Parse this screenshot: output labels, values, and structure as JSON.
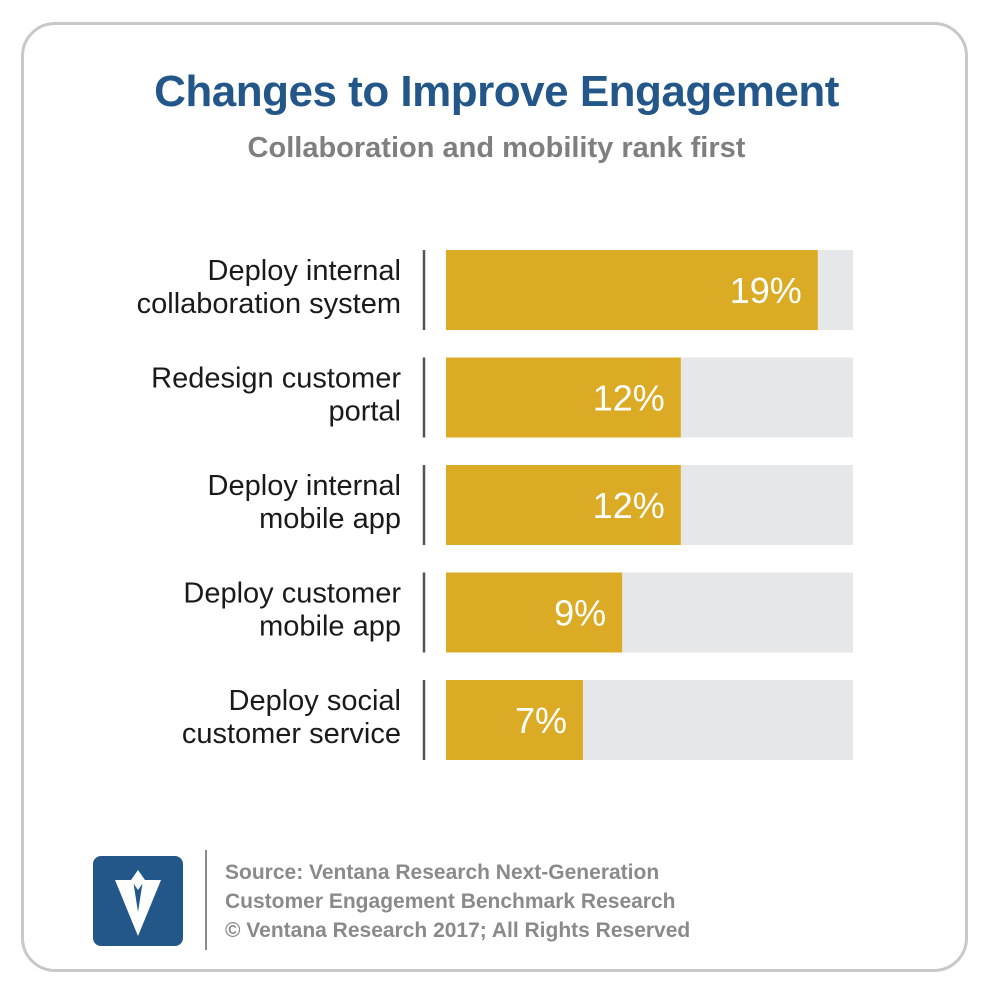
{
  "title": "Changes to Improve Engagement",
  "subtitle": "Collaboration and mobility rank first",
  "colors": {
    "title": "#245789",
    "subtitle": "#7f7f7f",
    "bar": "#dcab25",
    "track": "#e6e7e8",
    "axis": "#555555",
    "frame": "#c8c8c8",
    "logo_bg": "#245789"
  },
  "chart_data": {
    "type": "bar",
    "orientation": "horizontal",
    "categories": [
      [
        "Deploy internal",
        "collaboration system"
      ],
      [
        "Redesign customer",
        "portal"
      ],
      [
        "Deploy internal",
        "mobile app"
      ],
      [
        "Deploy customer",
        "mobile app"
      ],
      [
        "Deploy social",
        "customer service"
      ]
    ],
    "values": [
      19,
      12,
      12,
      9,
      7
    ],
    "value_labels": [
      "19%",
      "12%",
      "12%",
      "9%",
      "7%"
    ],
    "xlim": [
      0,
      20.8
    ],
    "grid": false,
    "legend": "none"
  },
  "footer": {
    "logo_icon": "ventana-v-logo-icon",
    "source_lines": [
      "Source: Ventana Research Next-Generation",
      "Customer Engagement Benchmark Research",
      "© Ventana Research 2017; All Rights Reserved"
    ]
  }
}
